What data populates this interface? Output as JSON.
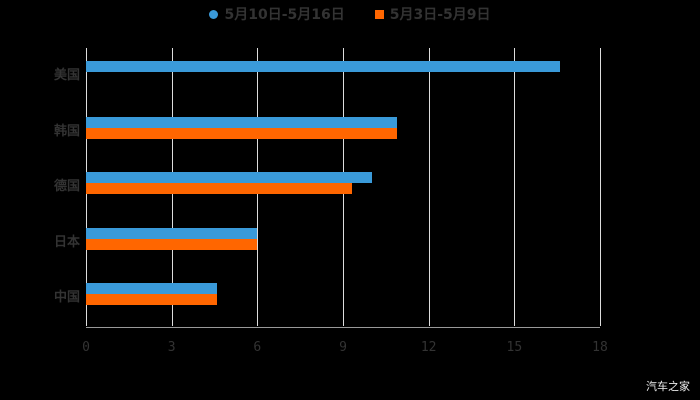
{
  "legend": [
    {
      "label": "5月10日-5月16日",
      "color": "#3a9ad9"
    },
    {
      "label": "5月3日-5月9日",
      "color": "#ff6600"
    }
  ],
  "watermark": "汽车之家",
  "chart_data": {
    "type": "bar",
    "orientation": "horizontal",
    "categories": [
      "美国",
      "韩国",
      "德国",
      "日本",
      "中国"
    ],
    "series": [
      {
        "name": "5月10日-5月16日",
        "color": "#3a9ad9",
        "values": [
          16.6,
          10.9,
          10.0,
          6.0,
          4.6
        ]
      },
      {
        "name": "5月3日-5月9日",
        "color": "#ff6600",
        "values": [
          0,
          10.9,
          9.3,
          6.0,
          4.6
        ]
      }
    ],
    "xticks": [
      "0",
      "3",
      "6",
      "9",
      "12",
      "15",
      "18"
    ],
    "xlim": [
      0,
      18
    ],
    "grid": true,
    "legend_position": "top"
  }
}
